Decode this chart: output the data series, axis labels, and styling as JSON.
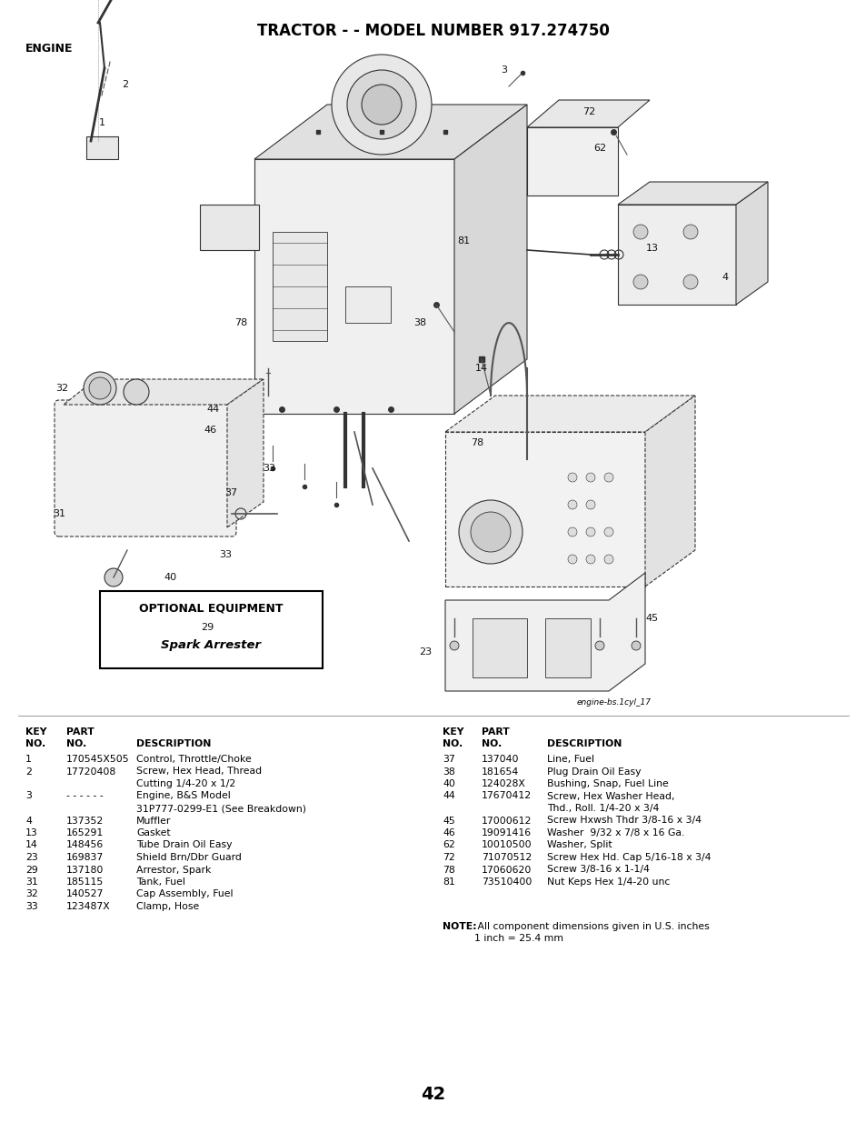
{
  "title": "TRACTOR - - MODEL NUMBER 917.274750",
  "section": "ENGINE",
  "page_number": "42",
  "diagram_label": "engine-bs.1cyl_17",
  "optional_equipment_title": "OPTIONAL EQUIPMENT",
  "optional_equipment_item": "Spark Arrester",
  "note_bold": "NOTE:",
  "note_text1": " All component dimensions given in U.S. inches",
  "note_text2": "1 inch = 25.4 mm",
  "bg_color": "#ffffff",
  "text_color": "#000000",
  "title_fontsize": 12,
  "section_fontsize": 9,
  "table_fontsize": 7.8,
  "parts_left": [
    [
      "1",
      "170545X505",
      "Control, Throttle/Choke",
      false
    ],
    [
      "2",
      "17720408",
      "Screw, Hex Head, Thread",
      true
    ],
    [
      "",
      "",
      "Cutting 1/4-20 x 1/2",
      false
    ],
    [
      "3",
      "- - - - - -",
      "Engine, B&S Model",
      true
    ],
    [
      "",
      "",
      "31P777-0299-E1 (See Breakdown)",
      false
    ],
    [
      "4",
      "137352",
      "Muffler",
      false
    ],
    [
      "13",
      "165291",
      "Gasket",
      false
    ],
    [
      "14",
      "148456",
      "Tube Drain Oil Easy",
      false
    ],
    [
      "23",
      "169837",
      "Shield Brn/Dbr Guard",
      false
    ],
    [
      "29",
      "137180",
      "Arrestor, Spark",
      false
    ],
    [
      "31",
      "185115",
      "Tank, Fuel",
      false
    ],
    [
      "32",
      "140527",
      "Cap Assembly, Fuel",
      false
    ],
    [
      "33",
      "123487X",
      "Clamp, Hose",
      false
    ]
  ],
  "parts_right": [
    [
      "37",
      "137040",
      "Line, Fuel",
      false
    ],
    [
      "38",
      "181654",
      "Plug Drain Oil Easy",
      false
    ],
    [
      "40",
      "124028X",
      "Bushing, Snap, Fuel Line",
      false
    ],
    [
      "44",
      "17670412",
      "Screw, Hex Washer Head,",
      true
    ],
    [
      "",
      "",
      "Thd., Roll. 1/4-20 x 3/4",
      false
    ],
    [
      "45",
      "17000612",
      "Screw Hxwsh Thdr 3/8-16 x 3/4",
      false
    ],
    [
      "46",
      "19091416",
      "Washer  9/32 x 7/8 x 16 Ga.",
      false
    ],
    [
      "62",
      "10010500",
      "Washer, Split",
      false
    ],
    [
      "72",
      "71070512",
      "Screw Hex Hd. Cap 5/16-18 x 3/4",
      false
    ],
    [
      "78",
      "17060620",
      "Screw 3/8-16 x 1-1/4",
      false
    ],
    [
      "81",
      "73510400",
      "Nut Keps Hex 1/4-20 unc",
      false
    ]
  ]
}
